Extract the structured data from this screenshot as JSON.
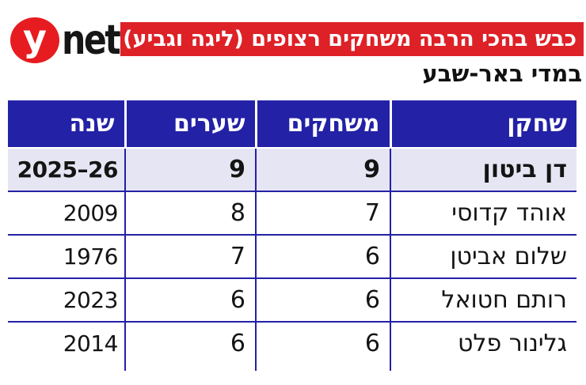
{
  "brand": {
    "logo_y": "y",
    "logo_net": "net"
  },
  "chart_data": {
    "type": "table",
    "title": "כבש בהכי הרבה משחקים רצופים (ליגה וגביע)",
    "subtitle": "במדי באר-שבע",
    "columns": [
      "שחקן",
      "משחקים",
      "שערים",
      "שנה"
    ],
    "rows": [
      [
        "דן ביטון",
        9,
        9,
        "2025–26"
      ],
      [
        "אוהד קדוסי",
        7,
        8,
        "2009"
      ],
      [
        "שלום אביטן",
        6,
        7,
        "1976"
      ],
      [
        "רותם חטואל",
        6,
        6,
        "2023"
      ],
      [
        "גלינור פלט",
        6,
        6,
        "2014"
      ]
    ],
    "highlight_row_index": 0,
    "layout": {
      "direction": "rtl",
      "header_position": "top",
      "grid": true
    }
  },
  "colors": {
    "banner_red": "#dd2127",
    "logo_red": "#e71c20",
    "header_blue": "#2321a6",
    "grid_blue": "#2321a6",
    "highlight_row_bg": "#e6e5f3",
    "header_text": "#ffffff",
    "body_text": "#141414"
  }
}
